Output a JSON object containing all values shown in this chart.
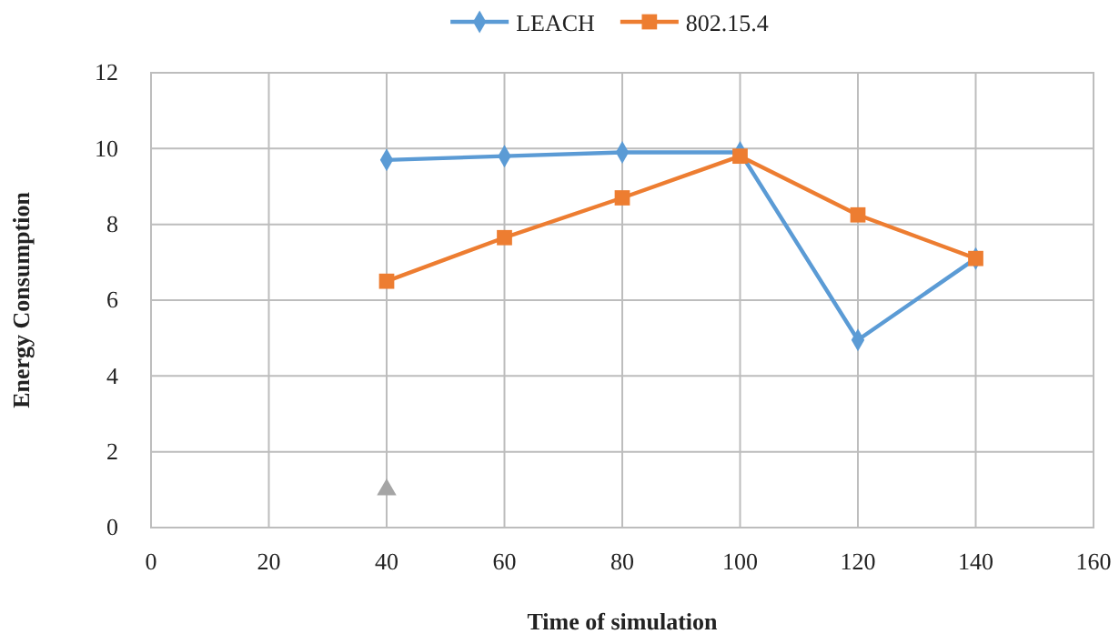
{
  "chart_data": {
    "type": "line",
    "xlabel": "Time of simulation",
    "ylabel": "Energy Consumption",
    "x": [
      40,
      60,
      80,
      100,
      120,
      140
    ],
    "series": [
      {
        "name": "LEACH",
        "color": "#5b9bd5",
        "marker": "diamond",
        "values": [
          9.7,
          9.8,
          9.9,
          9.9,
          4.95,
          7.1
        ]
      },
      {
        "name": "802.15.4",
        "color": "#ed7d31",
        "marker": "square",
        "values": [
          6.5,
          7.65,
          8.7,
          9.8,
          8.25,
          7.1
        ]
      },
      {
        "type": "scatter",
        "color": "#a5a5a5",
        "marker": "triangle",
        "x": [
          40
        ],
        "values": [
          1
        ]
      }
    ],
    "xlim": [
      0,
      160
    ],
    "xticks": [
      0,
      20,
      40,
      60,
      80,
      100,
      120,
      140,
      160
    ],
    "ylim": [
      0,
      12
    ],
    "yticks": [
      0,
      2,
      4,
      6,
      8,
      10,
      12
    ],
    "grid": true,
    "legend": "top",
    "line_style": "solid"
  }
}
